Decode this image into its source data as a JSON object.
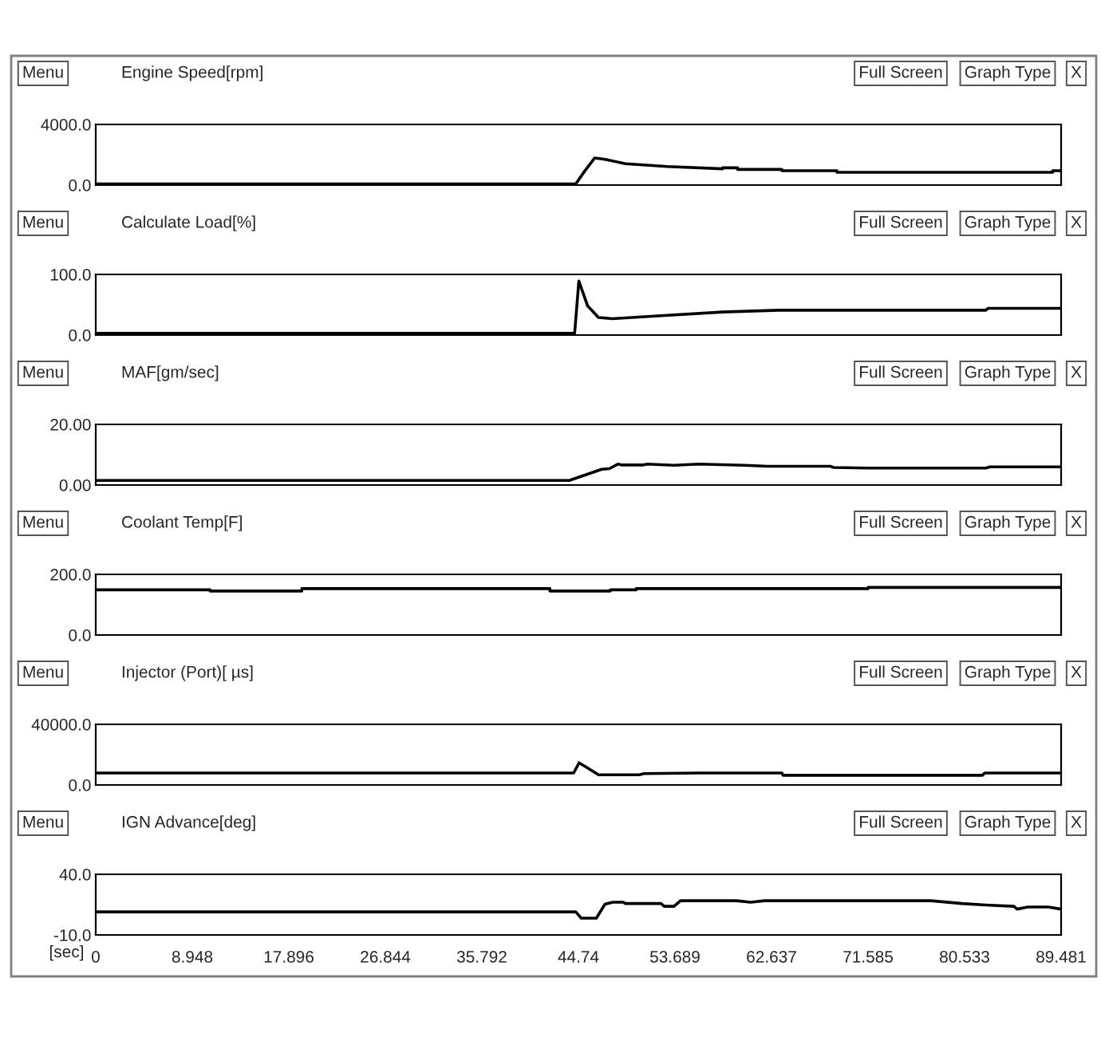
{
  "chart_data": [
    {
      "type": "line",
      "title": "Engine Speed[rpm]",
      "annotations": [
        "Menu",
        "Full Screen",
        "Graph Type",
        "X"
      ],
      "tick_labels": "y",
      "xlim": [
        0,
        89.481
      ],
      "xticks": [
        0,
        8.948,
        17.896,
        26.844,
        35.792,
        44.74,
        53.689,
        62.637,
        71.585,
        80.533,
        89.481
      ],
      "ylim": [
        0,
        4000
      ],
      "yticks": [
        {
          "value": 0,
          "label": "0.0"
        },
        {
          "value": 4000,
          "label": "4000.0"
        }
      ],
      "series": [
        {
          "color": "#000000",
          "x": [
            0,
            44.5,
            45.3,
            46.25,
            47.2,
            49.1,
            53.0,
            58.1,
            58.1,
            59.5,
            59.5,
            63.6,
            63.6,
            68.7,
            68.7,
            88.7,
            88.7,
            89.481
          ],
          "values": [
            80,
            80,
            900,
            1790,
            1700,
            1410,
            1220,
            1070,
            1140,
            1140,
            1030,
            1030,
            950,
            950,
            840,
            840,
            950,
            950
          ]
        }
      ]
    },
    {
      "type": "line",
      "title": "Calculate Load[%]",
      "annotations": [
        "Menu",
        "Full Screen",
        "Graph Type",
        "X"
      ],
      "tick_labels": "y",
      "xlim": [
        0,
        89.481
      ],
      "xticks": [
        0,
        8.948,
        17.896,
        26.844,
        35.792,
        44.74,
        53.689,
        62.637,
        71.585,
        80.533,
        89.481
      ],
      "ylim": [
        0,
        100
      ],
      "yticks": [
        {
          "value": 0,
          "label": "0.0"
        },
        {
          "value": 100,
          "label": "100.0"
        }
      ],
      "series": [
        {
          "color": "#000000",
          "x": [
            0,
            44.39,
            44.78,
            45.6,
            46.6,
            47.9,
            52.4,
            58.1,
            63.3,
            82.5,
            82.7,
            89.481
          ],
          "values": [
            3,
            3,
            89,
            48,
            29,
            27,
            32,
            38,
            41,
            41,
            44,
            44
          ]
        }
      ]
    },
    {
      "type": "line",
      "title": "MAF[gm/sec]",
      "annotations": [
        "Menu",
        "Full Screen",
        "Graph Type",
        "X"
      ],
      "tick_labels": "y",
      "xlim": [
        0,
        89.481
      ],
      "xticks": [
        0,
        8.948,
        17.896,
        26.844,
        35.792,
        44.74,
        53.689,
        62.637,
        71.585,
        80.533,
        89.481
      ],
      "ylim": [
        0,
        20
      ],
      "yticks": [
        {
          "value": 0,
          "label": "0.00"
        },
        {
          "value": 20,
          "label": "20.00"
        }
      ],
      "series": [
        {
          "color": "#000000",
          "x": [
            0,
            43.9,
            46.9,
            47.6,
            48.4,
            48.8,
            50.7,
            51.1,
            53.6,
            55.9,
            60.1,
            62.3,
            68.1,
            68.4,
            71.6,
            82.5,
            82.9,
            89.481
          ],
          "values": [
            1.5,
            1.5,
            5.2,
            5.4,
            6.9,
            6.6,
            6.6,
            6.9,
            6.5,
            6.9,
            6.5,
            6.2,
            6.2,
            5.8,
            5.6,
            5.6,
            6.0,
            6.0
          ]
        }
      ]
    },
    {
      "type": "line",
      "title": "Coolant Temp[F]",
      "annotations": [
        "Menu",
        "Full Screen",
        "Graph Type",
        "X"
      ],
      "tick_labels": "y",
      "xlim": [
        0,
        89.481
      ],
      "xticks": [
        0,
        8.948,
        17.896,
        26.844,
        35.792,
        44.74,
        53.689,
        62.637,
        71.585,
        80.533,
        89.481
      ],
      "ylim": [
        0,
        200
      ],
      "yticks": [
        {
          "value": 0,
          "label": "0.0"
        },
        {
          "value": 200,
          "label": "200.0"
        }
      ],
      "series": [
        {
          "color": "#000000",
          "x": [
            0,
            10.6,
            10.6,
            19.1,
            19.1,
            42.1,
            42.1,
            47.7,
            47.7,
            50.1,
            50.1,
            71.6,
            71.6,
            89.481
          ],
          "values": [
            149,
            149,
            145,
            145,
            153,
            153,
            145,
            145,
            149,
            149,
            153,
            153,
            157,
            157
          ]
        }
      ]
    },
    {
      "type": "line",
      "title": "Injector (Port)[ µs]",
      "annotations": [
        "Menu",
        "Full Screen",
        "Graph Type",
        "X"
      ],
      "tick_labels": "y",
      "xlim": [
        0,
        89.481
      ],
      "xticks": [
        0,
        8.948,
        17.896,
        26.844,
        35.792,
        44.74,
        53.689,
        62.637,
        71.585,
        80.533,
        89.481
      ],
      "ylim": [
        0,
        40000
      ],
      "yticks": [
        {
          "value": 0,
          "label": "0.0"
        },
        {
          "value": 40000,
          "label": "40000.0"
        }
      ],
      "series": [
        {
          "color": "#000000",
          "x": [
            0,
            44.3,
            44.8,
            45.6,
            46.6,
            50.4,
            50.8,
            55.9,
            63.6,
            63.7,
            82.2,
            82.4,
            89.481
          ],
          "values": [
            7900,
            7900,
            14600,
            11200,
            6700,
            6700,
            7500,
            7900,
            7900,
            6400,
            6400,
            7900,
            7900
          ]
        }
      ]
    },
    {
      "type": "line",
      "title": "IGN Advance[deg]",
      "annotations": [
        "Menu",
        "Full Screen",
        "Graph Type",
        "X"
      ],
      "xlabel": "[sec]",
      "xlim": [
        0,
        89.481
      ],
      "xticks": [
        0,
        8.948,
        17.896,
        26.844,
        35.792,
        44.74,
        53.689,
        62.637,
        71.585,
        80.533,
        89.481
      ],
      "ylim": [
        -10,
        40
      ],
      "yticks": [
        {
          "value": -10,
          "label": "-10.0"
        },
        {
          "value": 40,
          "label": "40.0"
        }
      ],
      "series": [
        {
          "color": "#000000",
          "x": [
            0,
            44.5,
            45.0,
            46.4,
            47.2,
            47.9,
            48.9,
            49.1,
            52.4,
            52.7,
            53.6,
            54.2,
            59.4,
            60.7,
            62.0,
            77.4,
            80.3,
            82.5,
            85.1,
            85.4,
            86.4,
            88.3,
            89.481
          ],
          "values": [
            9,
            9,
            3.8,
            3.8,
            15.3,
            17,
            17,
            15.9,
            15.9,
            13.6,
            13.6,
            18.2,
            18.2,
            17,
            18.2,
            18.2,
            15.9,
            14.7,
            13.6,
            11.3,
            13,
            13,
            11.3
          ]
        }
      ]
    }
  ]
}
